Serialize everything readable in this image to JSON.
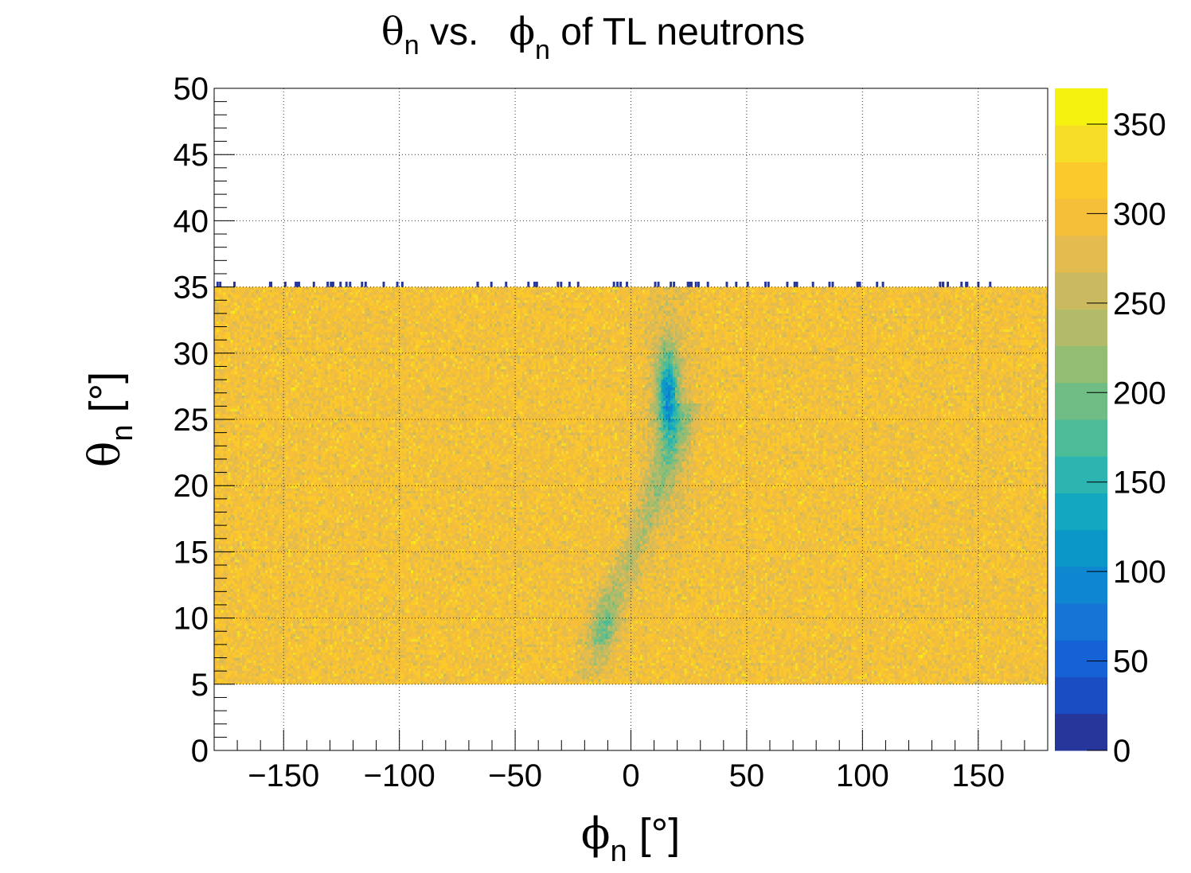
{
  "chart_data": {
    "type": "heatmap",
    "title": {
      "theta_symbol": "θ",
      "theta_sub": "n",
      "vs": " vs.",
      "phi_symbol": "ϕ",
      "phi_sub": "n",
      "rest": " of TL neutrons"
    },
    "xlabel": {
      "symbol": "ϕ",
      "sub": "n",
      "unit": " [°]"
    },
    "ylabel": {
      "symbol": "θ",
      "sub": "n",
      "unit": " [°]"
    },
    "xlim": [
      -180,
      180
    ],
    "ylim": [
      0,
      50
    ],
    "zlim": [
      0,
      370
    ],
    "x_ticks": [
      -150,
      -100,
      -50,
      0,
      50,
      100,
      150
    ],
    "x_tick_labels": [
      "−150",
      "−100",
      "−50",
      "0",
      "50",
      "100",
      "150"
    ],
    "y_ticks": [
      0,
      5,
      10,
      15,
      20,
      25,
      30,
      35,
      40,
      45,
      50
    ],
    "y_tick_labels": [
      "0",
      "5",
      "10",
      "15",
      "20",
      "25",
      "30",
      "35",
      "40",
      "45",
      "50"
    ],
    "z_ticks": [
      0,
      50,
      100,
      150,
      200,
      250,
      300,
      350
    ],
    "z_tick_labels": [
      "0",
      "50",
      "100",
      "150",
      "200",
      "250",
      "300",
      "350"
    ],
    "grid": true,
    "filled_region": {
      "phi_range": [
        -180,
        180
      ],
      "theta_range": [
        5,
        35
      ]
    },
    "background_counts": 300,
    "features": [
      {
        "phi": 16,
        "theta": 27,
        "counts": 140,
        "note": "depletion"
      },
      {
        "phi": -12,
        "theta": 9.5,
        "counts": 235,
        "note": "depletion"
      },
      {
        "phi": -5,
        "theta": 13,
        "counts": 245,
        "note": "depletion"
      }
    ],
    "palette": [
      "#26369b",
      "#1a4cc4",
      "#1462d5",
      "#1574d5",
      "#0e86d0",
      "#0b97c8",
      "#13a8c0",
      "#2cb4b0",
      "#4cbb98",
      "#6fbd84",
      "#93bd73",
      "#b2bb6a",
      "#cbb95f",
      "#e3bb4e",
      "#f5bf3a",
      "#fcc92a",
      "#f6dd27",
      "#f4f20e"
    ]
  }
}
